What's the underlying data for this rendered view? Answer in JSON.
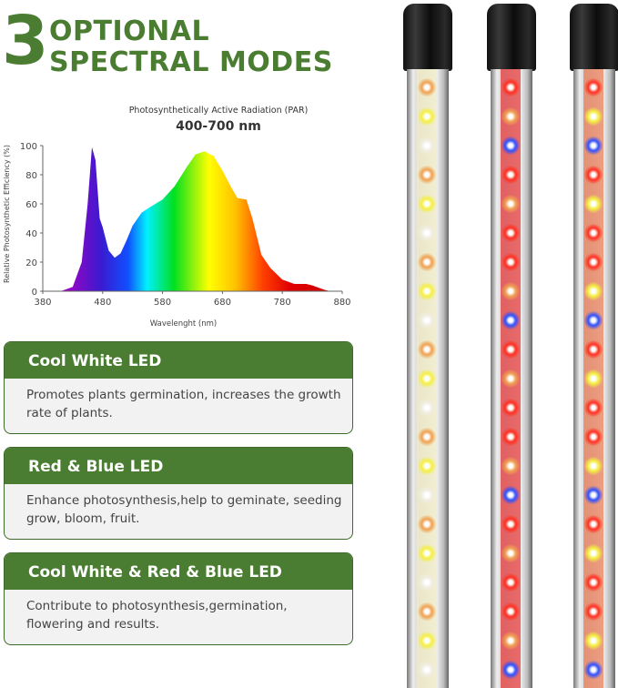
{
  "header": {
    "number": "3",
    "line1": "OPTIONAL",
    "line2": "SPECTRAL MODES"
  },
  "colors": {
    "brand_green": "#4a7d32",
    "card_bg": "#f2f2f2"
  },
  "chart_data": {
    "type": "area",
    "title": "Photosynthetically Active Radiation (PAR)",
    "subtitle": "400-700 nm",
    "xlabel": "Wavelenght (nm)",
    "ylabel": "Relative Photosynthetic Efficiency (%)",
    "xlim": [
      380,
      880
    ],
    "ylim": [
      0,
      100
    ],
    "xticks": [
      "380",
      "480",
      "580",
      "680",
      "780",
      "880"
    ],
    "yticks": [
      "0",
      "20",
      "40",
      "60",
      "80",
      "100"
    ],
    "x": [
      410,
      430,
      445,
      455,
      462,
      468,
      475,
      480,
      490,
      500,
      510,
      520,
      530,
      545,
      560,
      580,
      600,
      620,
      635,
      650,
      665,
      680,
      695,
      705,
      720,
      730,
      745,
      760,
      780,
      800,
      820,
      830,
      850,
      860
    ],
    "y": [
      0,
      3,
      20,
      60,
      99,
      90,
      50,
      44,
      28,
      23,
      26,
      35,
      45,
      54,
      58,
      63,
      72,
      85,
      94,
      96,
      93,
      83,
      71,
      64,
      63,
      50,
      25,
      16,
      8,
      5,
      5,
      4,
      1,
      0
    ],
    "fill": "spectral gradient (violet to red)",
    "grid": false
  },
  "cards": [
    {
      "title": "Cool White LED",
      "desc": "Promotes plants germination, increases the growth rate of plants."
    },
    {
      "title": "Red & Blue LED",
      "desc": "Enhance photosynthesis,help to geminate, seeding grow, bloom, fruit."
    },
    {
      "title": "Cool White & Red & Blue LED",
      "desc": "Contribute to photosynthesis,germination, flowering and results."
    }
  ],
  "tubes": [
    {
      "name": "cool-white",
      "pattern": [
        "#f0a050",
        "#f4f040",
        "#f0eee0",
        "#f0a050",
        "#f4f040",
        "#f0eee0"
      ]
    },
    {
      "name": "red-blue",
      "pattern": [
        "#ff3020",
        "#f0a050",
        "#3050ff",
        "#ff3020",
        "#f0a050",
        "#ff3020"
      ]
    },
    {
      "name": "white-red-blue",
      "pattern": [
        "#ff3020",
        "#f4f040",
        "#3050ff",
        "#ff3020",
        "#f4f040",
        "#ff3020"
      ]
    }
  ]
}
